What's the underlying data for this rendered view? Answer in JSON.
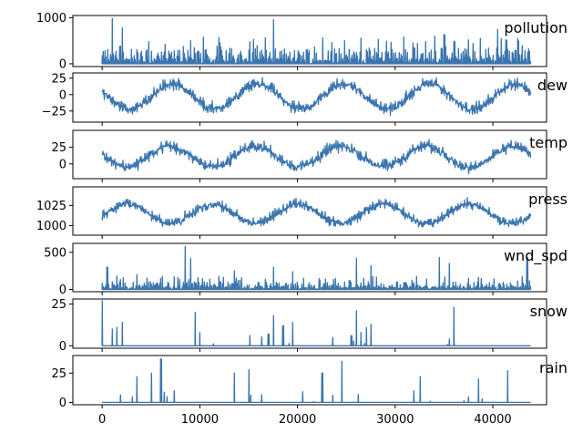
{
  "chart_data": {
    "type": "line",
    "layout": "stacked-subplots",
    "color": "#3b75af",
    "xlim": [
      -3000,
      45500
    ],
    "x_ticks": [
      0,
      10000,
      20000,
      30000,
      40000
    ],
    "n_points": 43800,
    "panels": [
      {
        "title": "pollution",
        "ylim": [
          -60,
          1050
        ],
        "y_ticks": [
          0,
          1000
        ],
        "shape": "spiky",
        "baseline": 0,
        "typical": 100,
        "peaks": [
          {
            "x": 1000,
            "y": 990
          },
          {
            "x": 2000,
            "y": 780
          },
          {
            "x": 9000,
            "y": 500
          },
          {
            "x": 12000,
            "y": 460
          },
          {
            "x": 17500,
            "y": 960
          },
          {
            "x": 26500,
            "y": 560
          },
          {
            "x": 34000,
            "y": 600
          },
          {
            "x": 35000,
            "y": 630
          },
          {
            "x": 36000,
            "y": 480
          },
          {
            "x": 40500,
            "y": 750
          },
          {
            "x": 42500,
            "y": 550
          }
        ]
      },
      {
        "title": "dew",
        "ylim": [
          -42,
          33
        ],
        "y_ticks": [
          -25,
          0,
          25
        ],
        "shape": "seasonal",
        "center": -1,
        "amplitude": 19,
        "period": 8760,
        "phase_x": 5000,
        "noise": 7
      },
      {
        "title": "temp",
        "ylim": [
          -22,
          50
        ],
        "y_ticks": [
          0,
          25
        ],
        "shape": "seasonal",
        "center": 13,
        "amplitude": 15,
        "period": 8760,
        "phase_x": 4700,
        "noise": 7
      },
      {
        "title": "press",
        "ylim": [
          988,
          1048
        ],
        "y_ticks": [
          1000,
          1025
        ],
        "shape": "seasonal",
        "center": 1016,
        "amplitude": -12,
        "period": 8760,
        "phase_x": 4700,
        "noise": 5
      },
      {
        "title": "wnd_spd",
        "ylim": [
          -30,
          620
        ],
        "y_ticks": [
          0,
          500
        ],
        "shape": "spiky",
        "baseline": 0,
        "typical": 30,
        "peaks": [
          {
            "x": 500,
            "y": 300
          },
          {
            "x": 1500,
            "y": 180
          },
          {
            "x": 3500,
            "y": 200
          },
          {
            "x": 8500,
            "y": 580
          },
          {
            "x": 9000,
            "y": 420
          },
          {
            "x": 13500,
            "y": 250
          },
          {
            "x": 17500,
            "y": 300
          },
          {
            "x": 19500,
            "y": 240
          },
          {
            "x": 26000,
            "y": 420
          },
          {
            "x": 27500,
            "y": 320
          },
          {
            "x": 34500,
            "y": 430
          },
          {
            "x": 35500,
            "y": 350
          },
          {
            "x": 43500,
            "y": 430
          }
        ]
      },
      {
        "title": "snow",
        "ylim": [
          -1.5,
          28
        ],
        "y_ticks": [
          0,
          25
        ],
        "shape": "spiky",
        "baseline": 0,
        "typical": 0,
        "peaks": [
          {
            "x": 0,
            "y": 27
          },
          {
            "x": 1000,
            "y": 10
          },
          {
            "x": 1500,
            "y": 11
          },
          {
            "x": 2000,
            "y": 14
          },
          {
            "x": 9500,
            "y": 20
          },
          {
            "x": 10000,
            "y": 8
          },
          {
            "x": 17000,
            "y": 7
          },
          {
            "x": 17500,
            "y": 18
          },
          {
            "x": 18500,
            "y": 12
          },
          {
            "x": 19500,
            "y": 14
          },
          {
            "x": 25500,
            "y": 6
          },
          {
            "x": 26000,
            "y": 21
          },
          {
            "x": 26500,
            "y": 8
          },
          {
            "x": 27000,
            "y": 11
          },
          {
            "x": 27500,
            "y": 13
          },
          {
            "x": 35500,
            "y": 4
          },
          {
            "x": 36000,
            "y": 23
          }
        ]
      },
      {
        "title": "rain",
        "ylim": [
          -2,
          40
        ],
        "y_ticks": [
          0,
          25
        ],
        "shape": "spiky",
        "baseline": 0,
        "typical": 0,
        "peaks": [
          {
            "x": 3500,
            "y": 22
          },
          {
            "x": 5000,
            "y": 25
          },
          {
            "x": 6000,
            "y": 37
          },
          {
            "x": 13500,
            "y": 25
          },
          {
            "x": 15000,
            "y": 28
          },
          {
            "x": 22500,
            "y": 25
          },
          {
            "x": 24500,
            "y": 35
          },
          {
            "x": 32500,
            "y": 22
          },
          {
            "x": 38500,
            "y": 20
          },
          {
            "x": 41500,
            "y": 27
          }
        ]
      }
    ]
  }
}
